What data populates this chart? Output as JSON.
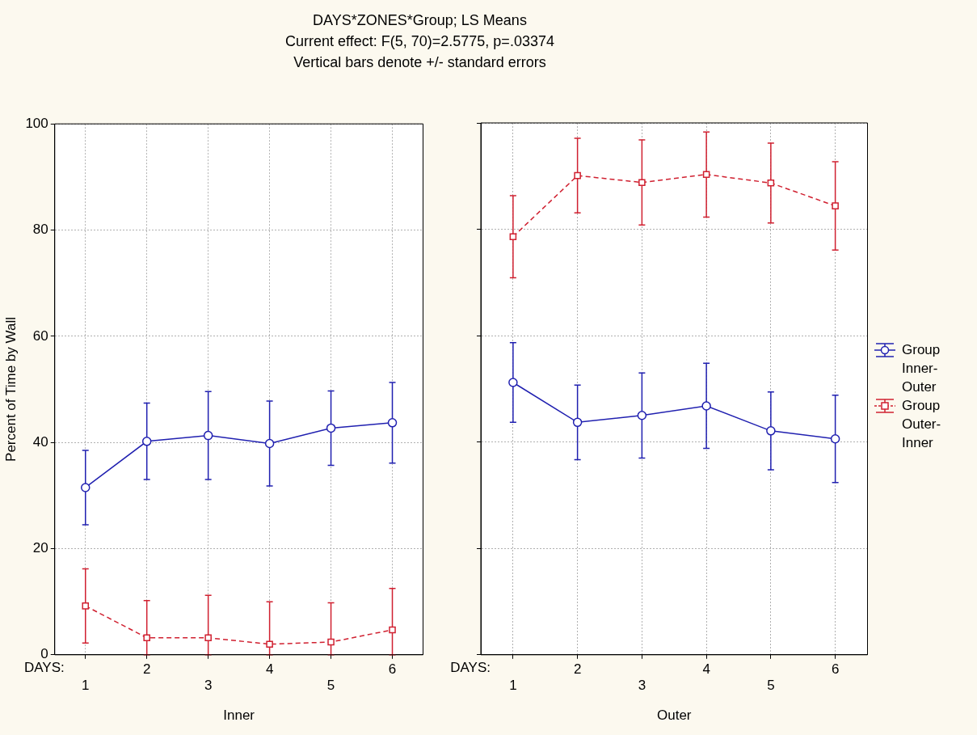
{
  "chart_data": [
    {
      "type": "line",
      "title": "DAYS*ZONES*Group; LS Means",
      "subtitle": "Current effect: F(5, 70)=2.5775, p=.03374\nVertical bars denote +/- standard errors",
      "xlabel": "Inner",
      "ylabel": "Percent of Time by Wall",
      "annotations": [
        "DAYS:"
      ],
      "categories": [
        "1",
        "2",
        "3",
        "4",
        "5",
        "6"
      ],
      "ylim": [
        0,
        100
      ],
      "yticks": [
        0,
        20,
        40,
        60,
        80,
        100
      ],
      "grid": true,
      "legend": false,
      "series": [
        {
          "color": "#2020b0",
          "marker": "circle",
          "line_style": "solid",
          "values": [
            31.5,
            40.2,
            41.3,
            39.8,
            42.7,
            43.7
          ],
          "errors": [
            7,
            7.2,
            8.3,
            8,
            7,
            7.6
          ]
        },
        {
          "color": "#d02030",
          "marker": "square",
          "line_style": "dashed",
          "values": [
            9.2,
            3.2,
            3.2,
            2.0,
            2.4,
            4.7
          ],
          "errors": [
            7,
            [
              0,
              10.2
            ],
            [
              0,
              11.2
            ],
            [
              0,
              10
            ],
            [
              0,
              9.8
            ],
            [
              0,
              12.5
            ]
          ]
        }
      ]
    },
    {
      "type": "line",
      "xlabel": "Outer",
      "annotations": [
        "DAYS:"
      ],
      "categories": [
        "1",
        "2",
        "3",
        "4",
        "5",
        "6"
      ],
      "ylim": [
        0,
        100
      ],
      "yticks": [
        0,
        20,
        40,
        60,
        80,
        100
      ],
      "grid": true,
      "legend": "right",
      "tick_labels": "x",
      "series": [
        {
          "name": "Group Inner-Outer",
          "color": "#2020b0",
          "marker": "circle",
          "line_style": "solid",
          "values": [
            51.2,
            43.7,
            45.0,
            46.8,
            42.1,
            40.6
          ],
          "errors": [
            7.5,
            7,
            8,
            8,
            7.3,
            8.2
          ]
        },
        {
          "name": "Group Outer-Inner",
          "color": "#d02030",
          "marker": "square",
          "line_style": "dashed",
          "values": [
            78.6,
            90.1,
            88.8,
            90.3,
            88.7,
            84.4
          ],
          "errors": [
            7.7,
            7,
            8,
            8,
            7.5,
            8.3
          ]
        }
      ]
    }
  ]
}
